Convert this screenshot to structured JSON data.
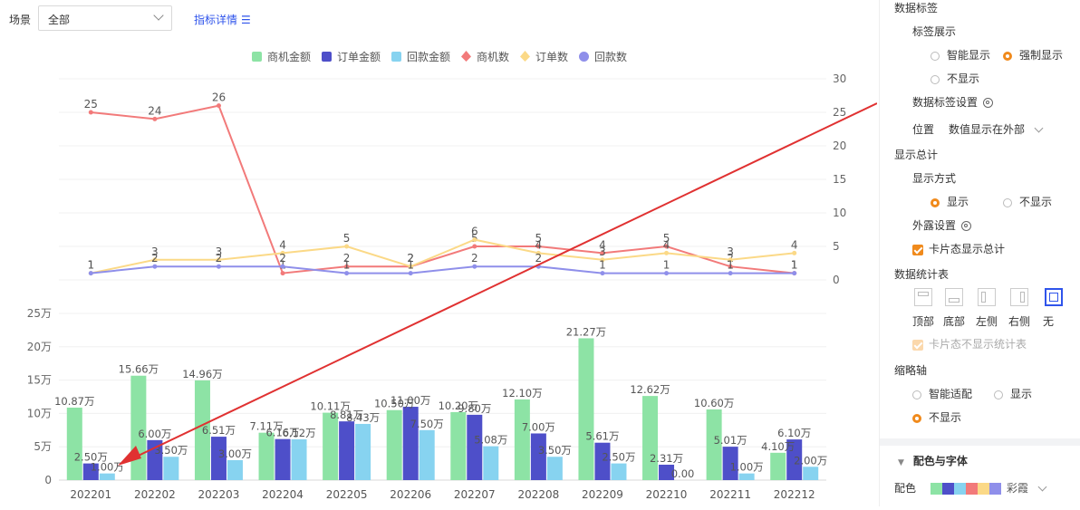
{
  "toolbar": {
    "scene_label": "场景",
    "scene_value": "全部",
    "detail_link": "指标详情"
  },
  "legend": [
    {
      "name": "商机金额",
      "color": "#8de3a5",
      "shape": "square"
    },
    {
      "name": "订单金额",
      "color": "#4e4fc9",
      "shape": "square"
    },
    {
      "name": "回款金额",
      "color": "#87d3f0",
      "shape": "square"
    },
    {
      "name": "商机数",
      "color": "#f27a7a",
      "shape": "diamond"
    },
    {
      "name": "订单数",
      "color": "#fbd987",
      "shape": "diamond"
    },
    {
      "name": "回款数",
      "color": "#8f8fea",
      "shape": "circle"
    }
  ],
  "chart_data": [
    {
      "type": "line",
      "categories": [
        "202201",
        "202202",
        "202203",
        "202204",
        "202205",
        "202206",
        "202207",
        "202208",
        "202209",
        "202210",
        "202211",
        "202212"
      ],
      "y_axis_position": "right",
      "ylim": [
        0,
        30
      ],
      "yticks": [
        "0",
        "5",
        "10",
        "15",
        "20",
        "25",
        "30"
      ],
      "series": [
        {
          "name": "商机数",
          "color": "#f27a7a",
          "values": [
            25,
            24,
            26,
            1,
            2,
            2,
            5,
            5,
            4,
            5,
            2,
            1
          ]
        },
        {
          "name": "订单数",
          "color": "#fbd987",
          "values": [
            1,
            3,
            3,
            4,
            5,
            2,
            6,
            4,
            3,
            4,
            3,
            4
          ]
        },
        {
          "name": "回款数",
          "color": "#8f8fea",
          "values": [
            1,
            2,
            2,
            2,
            1,
            1,
            2,
            2,
            1,
            1,
            1,
            1
          ]
        }
      ]
    },
    {
      "type": "bar",
      "categories": [
        "202201",
        "202202",
        "202203",
        "202204",
        "202205",
        "202206",
        "202207",
        "202208",
        "202209",
        "202210",
        "202211",
        "202212"
      ],
      "ylim": [
        0,
        25
      ],
      "yticks": [
        "0",
        "5万",
        "10万",
        "15万",
        "20万",
        "25万"
      ],
      "series": [
        {
          "name": "商机金额",
          "color": "#8de3a5",
          "values": [
            10.87,
            15.66,
            14.96,
            7.11,
            10.11,
            10.5,
            10.2,
            12.1,
            21.27,
            12.62,
            10.6,
            4.1
          ],
          "labels": [
            "10.87万",
            "15.66万",
            "14.96万",
            "7.11万",
            "10.11万",
            "10.50万",
            "10.20万",
            "12.10万",
            "21.27万",
            "12.62万",
            "10.60万",
            "4.10万"
          ]
        },
        {
          "name": "订单金额",
          "color": "#4e4fc9",
          "values": [
            2.5,
            6.0,
            6.51,
            6.16,
            8.81,
            11.0,
            9.8,
            7.0,
            5.61,
            2.31,
            5.01,
            6.1
          ],
          "labels": [
            "2.50万",
            "6.00万",
            "6.51万",
            "6.16万",
            "8.81万",
            "11.00万",
            "9.80万",
            "7.00万",
            "5.61万",
            "2.31万",
            "5.01万",
            "6.10万"
          ]
        },
        {
          "name": "回款金额",
          "color": "#87d3f0",
          "values": [
            1.0,
            3.5,
            3.0,
            6.12,
            8.43,
            7.5,
            5.08,
            3.5,
            2.5,
            0.0,
            1.0,
            2.0
          ],
          "labels": [
            "1.00万",
            "3.50万",
            "3.00万",
            "6.12万",
            "8.43万",
            "7.50万",
            "5.08万",
            "3.50万",
            "2.50万",
            "0.00",
            "1.00万",
            "2.00万"
          ]
        }
      ]
    }
  ],
  "panel": {
    "data_label_title": "数据标签",
    "label_display_title": "标签展示",
    "label_opt_smart": "智能显示",
    "label_opt_force": "强制显示",
    "label_opt_none": "不显示",
    "label_settings_title": "数据标签设置",
    "position_label": "位置",
    "position_value": "数值显示在外部",
    "show_total_title": "显示总计",
    "display_mode_title": "显示方式",
    "total_opt_show": "显示",
    "total_opt_hide": "不显示",
    "exposure_settings": "外露设置",
    "card_show_total": "卡片态显示总计",
    "stats_table_title": "数据统计表",
    "stats_opts": [
      "顶部",
      "底部",
      "左侧",
      "右侧",
      "无"
    ],
    "card_hide_stats": "卡片态不显示统计表",
    "thumb_axis_title": "缩略轴",
    "thumb_opt_smart": "智能适配",
    "thumb_opt_show": "显示",
    "thumb_opt_hide": "不显示",
    "color_font_title": "配色与字体",
    "color_label": "配色",
    "color_scheme_value": "彩霞",
    "scheme_colors": [
      "#8de3a5",
      "#4e4fc9",
      "#87d3f0",
      "#f27a7a",
      "#fbd987",
      "#8f8fea"
    ]
  }
}
